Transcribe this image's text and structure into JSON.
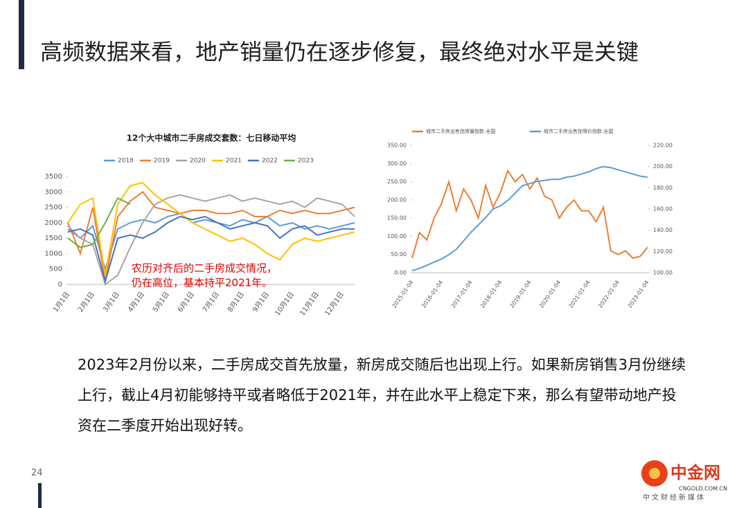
{
  "title": "高频数据来看，地产销量仍在逐步修复，最终绝对水平是关键",
  "body": "2023年2月份以来，二手房成交首先放量，新房成交随后也出现上行。如果新房销售3月份继续上行，截止4月初能够持平或者略低于2021年，并在此水平上稳定下来，那么有望带动地产投资在二季度开始出现好转。",
  "page_number": "24",
  "logo": {
    "name": "中金网",
    "url": "CNGOLD.COM.CN",
    "slogan": "中文财经新媒体"
  },
  "chart_data": [
    {
      "type": "line",
      "title": "12个大中城市二手房成交套数：七日移动平均",
      "categories": [
        "1月1日",
        null,
        "2月1日",
        null,
        "3月1日",
        null,
        "4月1日",
        null,
        "5月1日",
        null,
        "6月1日",
        null,
        "7月1日",
        null,
        "8月1日",
        null,
        "9月1日",
        null,
        "10月1日",
        null,
        "11月1日",
        null,
        "12月1日",
        null
      ],
      "series": [
        {
          "name": "2018",
          "color": "#5b9bd5",
          "values": [
            1800,
            1500,
            1900,
            500,
            1800,
            2000,
            2100,
            2000,
            2200,
            2300,
            2000,
            2100,
            2000,
            1900,
            2100,
            2000,
            2200,
            1900,
            2000,
            1800,
            1900,
            1800,
            1900,
            2000
          ]
        },
        {
          "name": "2019",
          "color": "#ed7d31",
          "values": [
            2000,
            1000,
            2500,
            100,
            2200,
            2700,
            3000,
            2500,
            2400,
            2300,
            2400,
            2400,
            2300,
            2300,
            2400,
            2200,
            2200,
            2400,
            2300,
            2400,
            2300,
            2300,
            2400,
            2500
          ]
        },
        {
          "name": "2020",
          "color": "#a5a5a5",
          "values": [
            1900,
            1500,
            1300,
            0,
            300,
            1200,
            2000,
            2600,
            2800,
            2900,
            2800,
            2700,
            2800,
            2900,
            2700,
            2800,
            2700,
            2600,
            2700,
            2500,
            2800,
            2700,
            2600,
            2200
          ]
        },
        {
          "name": "2021",
          "color": "#ffc000",
          "values": [
            2000,
            2600,
            2800,
            300,
            2600,
            3200,
            3300,
            2900,
            2600,
            2300,
            2000,
            1800,
            1600,
            1400,
            1500,
            1300,
            1000,
            800,
            1300,
            1500,
            1400,
            1500,
            1600,
            1700
          ]
        },
        {
          "name": "2022",
          "color": "#4472c4",
          "values": [
            1700,
            1800,
            1600,
            100,
            1500,
            1600,
            1500,
            1700,
            2000,
            2200,
            2100,
            2200,
            2000,
            1800,
            1900,
            2000,
            1900,
            1500,
            1800,
            1900,
            1600,
            1700,
            1800,
            1800
          ]
        },
        {
          "name": "2023",
          "color": "#70ad47",
          "values": [
            1500,
            1200,
            1300,
            2000,
            2800,
            2600,
            null,
            null,
            null,
            null,
            null,
            null,
            null,
            null,
            null,
            null,
            null,
            null,
            null,
            null,
            null,
            null,
            null,
            null
          ]
        }
      ],
      "ylim": [
        0,
        3500
      ],
      "yticks": [
        0,
        500,
        1000,
        1500,
        2000,
        2500,
        3000,
        3500
      ],
      "annotations": [
        "农历对齐后的二手房成交情况，",
        "仍在高位，基本持平2021年。"
      ]
    },
    {
      "type": "line",
      "categories": [
        "2015-01-04",
        null,
        null,
        null,
        "2016-01-04",
        null,
        null,
        null,
        "2017-01-04",
        null,
        null,
        null,
        "2018-01-04",
        null,
        null,
        null,
        "2019-01-04",
        null,
        null,
        null,
        "2020-01-04",
        null,
        null,
        null,
        "2021-01-04",
        null,
        null,
        null,
        "2022-01-04",
        null,
        null,
        null,
        "2023-01-04"
      ],
      "series": [
        {
          "name": "城市二手房出售挂牌量指数:全国",
          "color": "#ed7d31",
          "values": [
            40,
            110,
            90,
            150,
            190,
            250,
            170,
            230,
            200,
            150,
            240,
            180,
            220,
            280,
            250,
            270,
            230,
            260,
            210,
            200,
            150,
            180,
            200,
            170,
            170,
            140,
            180,
            60,
            50,
            60,
            40,
            45,
            70
          ]
        },
        {
          "name": "城市二手房出售挂牌价指数:全国",
          "color": "#5b9bd5",
          "axis": "y2",
          "values": [
            102,
            104,
            107,
            110,
            113,
            117,
            122,
            130,
            138,
            145,
            152,
            160,
            163,
            168,
            175,
            182,
            184,
            186,
            187,
            188,
            188,
            190,
            191,
            193,
            195,
            198,
            200,
            199,
            197,
            195,
            193,
            191,
            190
          ]
        }
      ],
      "ylim": [
        0,
        350
      ],
      "yticks": [
        {
          "value": 0,
          "label": "0.00"
        },
        {
          "value": 50,
          "label": "50.00"
        },
        {
          "value": 100,
          "label": "100.00"
        },
        {
          "value": 150,
          "label": "150.00"
        },
        {
          "value": 200,
          "label": "200.00"
        },
        {
          "value": 250,
          "label": "250.00"
        },
        {
          "value": 300,
          "label": "300.00"
        },
        {
          "value": 350,
          "label": "350.00"
        }
      ],
      "y2lim": [
        100,
        220
      ],
      "y2ticks": [
        {
          "value": 100,
          "label": "100.00"
        },
        {
          "value": 120,
          "label": "120.00"
        },
        {
          "value": 140,
          "label": "140.00"
        },
        {
          "value": 160,
          "label": "160.00"
        },
        {
          "value": 180,
          "label": "180.00"
        },
        {
          "value": 200,
          "label": "200.00"
        },
        {
          "value": 220,
          "label": "220.00"
        }
      ]
    }
  ]
}
